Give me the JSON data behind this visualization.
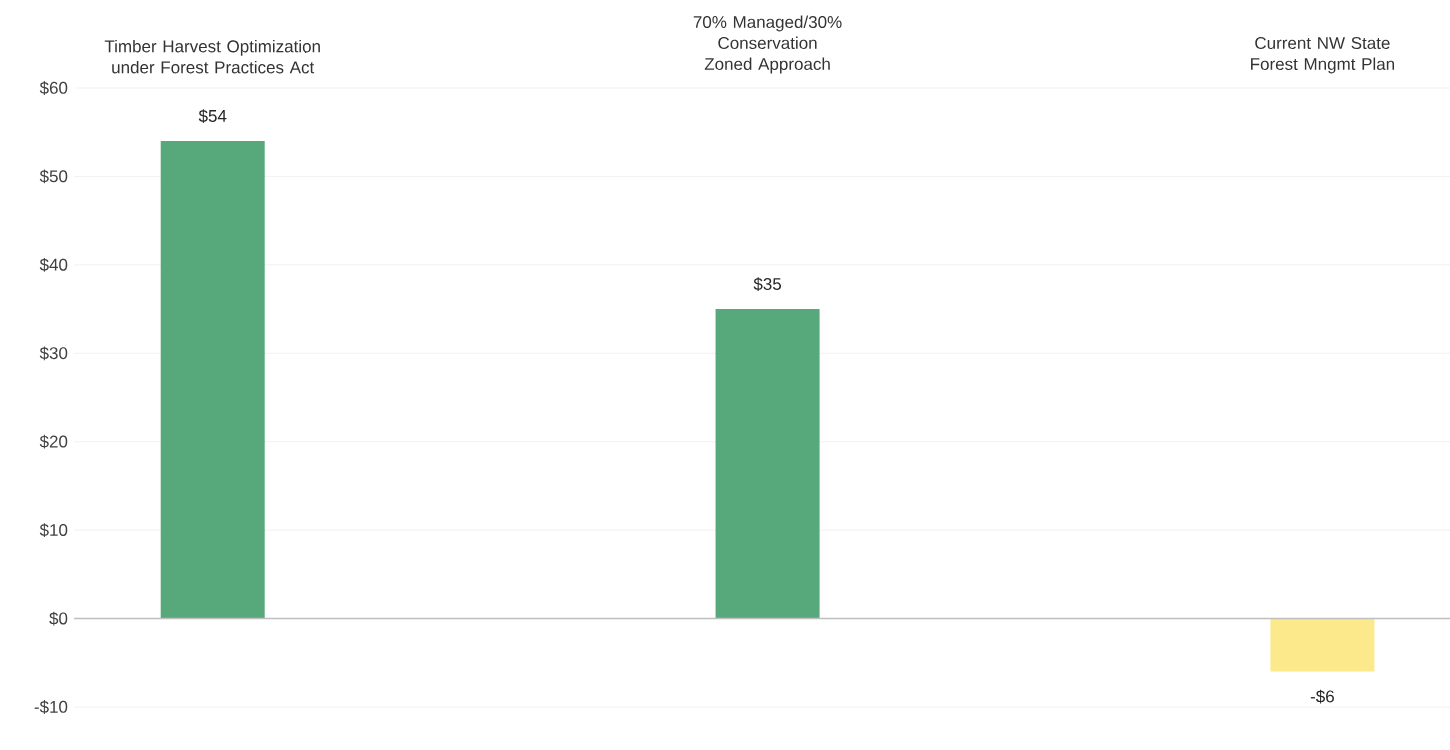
{
  "chart_data": {
    "type": "bar",
    "categories": [
      "Timber Harvest Optimization under Forest Practices Act",
      "70% Managed/30% Conservation Zoned Approach",
      "Current NW State Forest Mngmt Plan"
    ],
    "values": [
      54,
      35,
      -6
    ],
    "colors": [
      "#57a87a",
      "#57a87a",
      "#fbe98c"
    ],
    "value_labels": [
      "$54",
      "$35",
      "-$6"
    ],
    "ylim": [
      -10,
      60
    ],
    "yticks": [
      {
        "value": -10,
        "label": "-$10"
      },
      {
        "value": 0,
        "label": "$0"
      },
      {
        "value": 10,
        "label": "$10"
      },
      {
        "value": 20,
        "label": "$20"
      },
      {
        "value": 30,
        "label": "$30"
      },
      {
        "value": 40,
        "label": "$40"
      },
      {
        "value": 50,
        "label": "$50"
      },
      {
        "value": 60,
        "label": "$60"
      }
    ],
    "grid": "y"
  }
}
